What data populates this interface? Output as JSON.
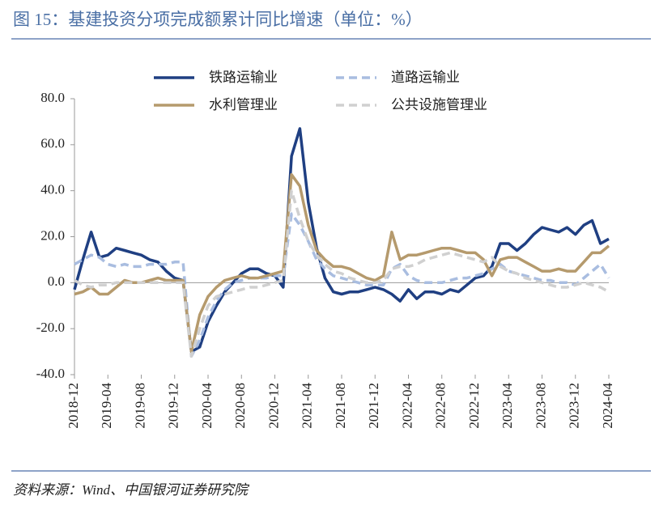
{
  "chart_data": {
    "type": "line",
    "title": "图 15：基建投资分项完成额累计同比增速（单位：%）",
    "source": "资料来源：Wind、中国银河证券研究院",
    "categories": [
      "2018-12",
      null,
      null,
      null,
      "2019-04",
      null,
      null,
      null,
      "2019-08",
      null,
      null,
      null,
      "2019-12",
      null,
      null,
      null,
      "2020-04",
      null,
      null,
      null,
      "2020-08",
      null,
      null,
      null,
      "2020-12",
      null,
      null,
      null,
      "2021-04",
      null,
      null,
      null,
      "2021-08",
      null,
      null,
      null,
      "2021-12",
      null,
      null,
      null,
      "2022-04",
      null,
      null,
      null,
      "2022-08",
      null,
      null,
      null,
      "2022-12",
      null,
      null,
      null,
      "2023-04",
      null,
      null,
      null,
      "2023-08",
      null,
      null,
      null,
      "2023-12",
      null,
      null,
      null,
      "2024-04"
    ],
    "series": [
      {
        "name": "铁路运输业",
        "color": "#1f3f82",
        "dashed": false,
        "values": [
          -3,
          10,
          22,
          11,
          12,
          15,
          14,
          13,
          12,
          10,
          9,
          5,
          2,
          1,
          -30,
          -28,
          -17,
          -10,
          -4,
          0,
          4,
          6,
          6,
          4,
          3,
          -2,
          55,
          67,
          35,
          15,
          2,
          -4,
          -5,
          -4,
          -4,
          -3,
          -2,
          -3,
          -5,
          -8,
          -3,
          -7,
          -4,
          -4,
          -5,
          -3,
          -4,
          -1,
          2,
          3,
          7,
          17,
          17,
          14,
          17,
          21,
          24,
          23,
          22,
          24,
          21,
          25,
          27,
          17,
          19
        ]
      },
      {
        "name": "道路运输业",
        "color": "#a9bde0",
        "dashed": true,
        "values": [
          8,
          10,
          12,
          11,
          8,
          7,
          8,
          7,
          7,
          8,
          8,
          8,
          9,
          9,
          -32,
          -25,
          -15,
          -8,
          -3,
          0,
          1,
          2,
          2,
          2,
          3,
          3,
          30,
          25,
          18,
          10,
          6,
          3,
          2,
          1,
          0,
          -1,
          -1,
          -1,
          6,
          8,
          3,
          1,
          0,
          0,
          0,
          1,
          2,
          2,
          3,
          4,
          6,
          8,
          5,
          4,
          3,
          2,
          1,
          1,
          0,
          0,
          -1,
          2,
          5,
          8,
          2
        ]
      },
      {
        "name": "水利管理业",
        "color": "#b59a6d",
        "dashed": false,
        "values": [
          -5,
          -4,
          -2,
          -5,
          -5,
          -2,
          1,
          0,
          0,
          1,
          2,
          1,
          1,
          1,
          -30,
          -14,
          -6,
          -2,
          1,
          2,
          3,
          2,
          2,
          3,
          4,
          5,
          47,
          42,
          25,
          14,
          10,
          7,
          7,
          6,
          4,
          2,
          1,
          3,
          22,
          10,
          12,
          12,
          13,
          14,
          15,
          15,
          14,
          13,
          13,
          10,
          3,
          10,
          11,
          11,
          9,
          7,
          5,
          5,
          6,
          5,
          5,
          9,
          13,
          13,
          16
        ]
      },
      {
        "name": "公共设施管理业",
        "color": "#d0d0d0",
        "dashed": true,
        "values": [
          1,
          -1,
          -2,
          -1,
          -1,
          0,
          0,
          0,
          0,
          0,
          0,
          0,
          0,
          0,
          -32,
          -20,
          -10,
          -6,
          -5,
          -4,
          -3,
          -2,
          -2,
          -1,
          0,
          1,
          40,
          28,
          18,
          12,
          8,
          5,
          4,
          2,
          1,
          0,
          0,
          1,
          6,
          7,
          7,
          8,
          10,
          11,
          12,
          13,
          12,
          11,
          10,
          9,
          11,
          7,
          5,
          4,
          2,
          1,
          0,
          -1,
          -2,
          -2,
          -1,
          0,
          -1,
          -2,
          -4
        ]
      }
    ],
    "ylim": [
      -40,
      80
    ],
    "yticks": [
      {
        "value": -40,
        "label": "-40.0"
      },
      {
        "value": -20,
        "label": "-20.0"
      },
      {
        "value": 0,
        "label": "0.0"
      },
      {
        "value": 20,
        "label": "20.0"
      },
      {
        "value": 40,
        "label": "40.0"
      },
      {
        "value": 60,
        "label": "60.0"
      },
      {
        "value": 80,
        "label": "80.0"
      }
    ]
  }
}
